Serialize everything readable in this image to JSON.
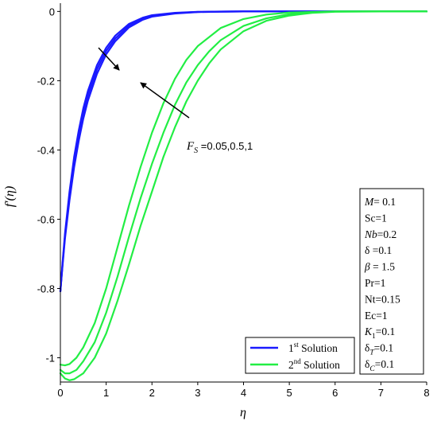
{
  "chart_data": {
    "type": "line",
    "xlabel": "η",
    "ylabel": "f′(η)",
    "xlim": [
      0,
      8
    ],
    "ylim": [
      -1.07,
      0.01
    ],
    "x_ticks": [
      "0",
      "1",
      "2",
      "3",
      "4",
      "5",
      "6",
      "7",
      "8"
    ],
    "y_ticks": [
      "0",
      "-0.2",
      "-0.4",
      "-0.6",
      "-0.8",
      "-1"
    ],
    "grid": false,
    "legend": {
      "placement": "bottom-right",
      "entries": [
        {
          "sup": "st",
          "label": " Solution",
          "prefix": "1",
          "color": "#1a1aff"
        },
        {
          "sup": "nd",
          "label": " Solution",
          "prefix": "2",
          "color": "#22ee44"
        }
      ]
    },
    "annotation": {
      "symbol": "F",
      "subscript": "S",
      "text": " =0.05,0.5,1"
    },
    "parameters": [
      {
        "label": "M",
        "italic": true,
        "sub": "",
        "value": "= 0.1"
      },
      {
        "label": "Sc",
        "italic": false,
        "sub": "",
        "value": "=1"
      },
      {
        "label": "Nb",
        "italic": true,
        "sub": "",
        "value": "=0.2"
      },
      {
        "label": "δ",
        "italic": false,
        "sub": "",
        "value": " =0.1"
      },
      {
        "label": "β",
        "italic": true,
        "sub": "",
        "value": " = 1.5"
      },
      {
        "label": "Pr",
        "italic": false,
        "sub": "",
        "value": "=1"
      },
      {
        "label": "Nt",
        "italic": false,
        "sub": "",
        "value": "=0.15"
      },
      {
        "label": "Ec",
        "italic": false,
        "sub": "",
        "value": "=1"
      },
      {
        "label": "K",
        "italic": true,
        "sub": "1",
        "value": "=0.1"
      },
      {
        "label": "δ",
        "italic": false,
        "sub": "T",
        "value": "=0.1"
      },
      {
        "label": "δ",
        "italic": false,
        "sub": "C",
        "value": "=0.1"
      }
    ],
    "series": [
      {
        "solution": "1st",
        "Fs": 0.05,
        "color": "#1a1aff",
        "x": [
          0,
          0.05,
          0.1,
          0.2,
          0.3,
          0.4,
          0.5,
          0.6,
          0.8,
          1.0,
          1.2,
          1.5,
          1.8,
          2.0,
          2.5,
          3.0,
          3.5,
          4.0,
          5.0,
          6.0,
          8.0
        ],
        "y": [
          -0.808,
          -0.72,
          -0.64,
          -0.52,
          -0.42,
          -0.345,
          -0.28,
          -0.23,
          -0.155,
          -0.105,
          -0.07,
          -0.036,
          -0.018,
          -0.011,
          -0.004,
          -0.0013,
          -0.0004,
          0,
          0,
          0,
          0
        ]
      },
      {
        "solution": "1st",
        "Fs": 0.5,
        "color": "#1a1aff",
        "x": [
          0,
          0.05,
          0.1,
          0.2,
          0.3,
          0.4,
          0.5,
          0.6,
          0.8,
          1.0,
          1.2,
          1.5,
          1.8,
          2.0,
          2.5,
          3.0,
          3.5,
          4.0,
          5.0,
          6.0,
          8.0
        ],
        "y": [
          -0.808,
          -0.725,
          -0.648,
          -0.532,
          -0.435,
          -0.36,
          -0.295,
          -0.243,
          -0.167,
          -0.114,
          -0.078,
          -0.041,
          -0.021,
          -0.013,
          -0.005,
          -0.0016,
          -0.0005,
          0,
          0,
          0,
          0
        ]
      },
      {
        "solution": "1st",
        "Fs": 1,
        "color": "#1a1aff",
        "x": [
          0,
          0.05,
          0.1,
          0.2,
          0.3,
          0.4,
          0.5,
          0.6,
          0.8,
          1.0,
          1.2,
          1.5,
          1.8,
          2.0,
          2.5,
          3.0,
          3.5,
          4.0,
          5.0,
          6.0,
          8.0
        ],
        "y": [
          -0.808,
          -0.73,
          -0.656,
          -0.545,
          -0.45,
          -0.375,
          -0.31,
          -0.258,
          -0.18,
          -0.124,
          -0.086,
          -0.046,
          -0.024,
          -0.015,
          -0.006,
          -0.002,
          -0.0006,
          0,
          0,
          0,
          0
        ]
      },
      {
        "solution": "2nd",
        "Fs": 0.05,
        "color": "#22ee44",
        "x": [
          0,
          0.1,
          0.2,
          0.35,
          0.5,
          0.75,
          1.0,
          1.25,
          1.5,
          1.75,
          2.0,
          2.25,
          2.5,
          2.75,
          3.0,
          3.5,
          4.0,
          4.5,
          5.0,
          6.0,
          7.0,
          8.0
        ],
        "y": [
          -1.02,
          -1.022,
          -1.018,
          -1.0,
          -0.97,
          -0.9,
          -0.8,
          -0.68,
          -0.56,
          -0.45,
          -0.35,
          -0.265,
          -0.195,
          -0.14,
          -0.1,
          -0.048,
          -0.022,
          -0.009,
          -0.003,
          0,
          0,
          0
        ]
      },
      {
        "solution": "2nd",
        "Fs": 0.5,
        "color": "#22ee44",
        "x": [
          0,
          0.1,
          0.2,
          0.35,
          0.5,
          0.75,
          1.0,
          1.25,
          1.5,
          1.75,
          2.0,
          2.25,
          2.5,
          2.75,
          3.0,
          3.25,
          3.5,
          4.0,
          4.5,
          5.0,
          5.5,
          6.0,
          7.0,
          8.0
        ],
        "y": [
          -1.035,
          -1.045,
          -1.045,
          -1.035,
          -1.01,
          -0.955,
          -0.87,
          -0.765,
          -0.65,
          -0.54,
          -0.44,
          -0.35,
          -0.27,
          -0.205,
          -0.155,
          -0.115,
          -0.083,
          -0.042,
          -0.02,
          -0.008,
          -0.003,
          0,
          0,
          0
        ]
      },
      {
        "solution": "2nd",
        "Fs": 1,
        "color": "#22ee44",
        "x": [
          0,
          0.1,
          0.2,
          0.3,
          0.5,
          0.75,
          1.0,
          1.25,
          1.5,
          1.75,
          2.0,
          2.25,
          2.5,
          2.75,
          3.0,
          3.25,
          3.5,
          4.0,
          4.5,
          5.0,
          5.5,
          6.0,
          7.0,
          8.0
        ],
        "y": [
          -1.045,
          -1.06,
          -1.065,
          -1.062,
          -1.045,
          -1.0,
          -0.93,
          -0.835,
          -0.73,
          -0.62,
          -0.52,
          -0.42,
          -0.335,
          -0.26,
          -0.2,
          -0.15,
          -0.11,
          -0.057,
          -0.027,
          -0.012,
          -0.004,
          -0.001,
          0,
          0
        ]
      }
    ]
  }
}
